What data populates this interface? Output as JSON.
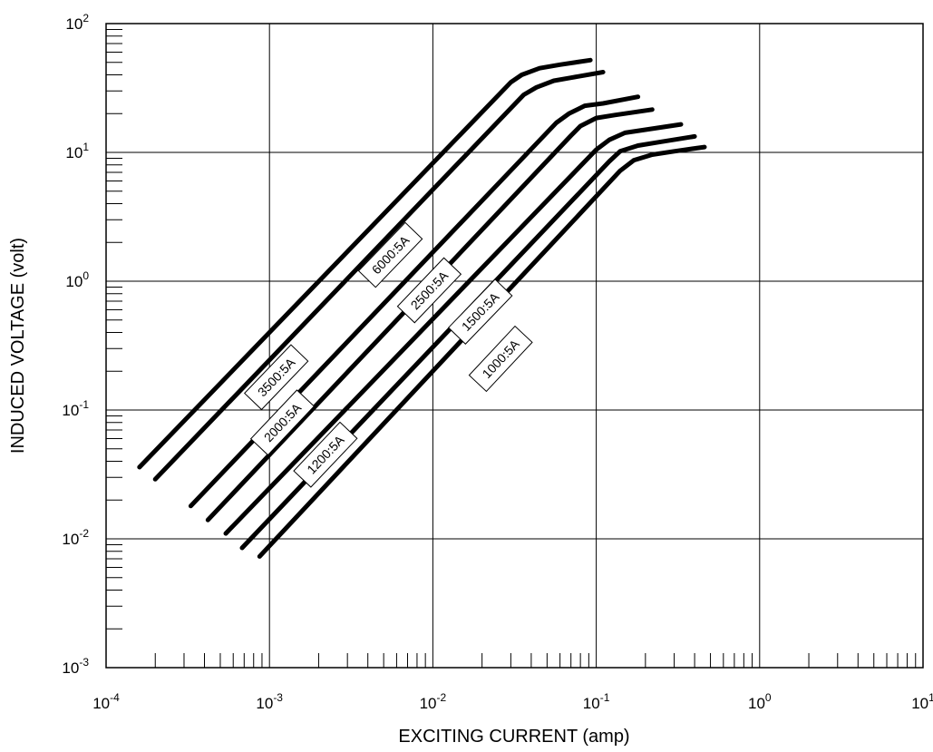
{
  "chart_data": {
    "type": "line",
    "title": "",
    "xlabel": "EXCITING CURRENT (amp)",
    "ylabel": "INDUCED VOLTAGE (volt)",
    "xscale": "log",
    "yscale": "log",
    "xlim": [
      0.0001,
      10
    ],
    "ylim": [
      0.001,
      100
    ],
    "grid": true,
    "legend": "none",
    "line_color": "#000000",
    "x_ticks": [
      {
        "base": "10",
        "exp": "-4",
        "value": 0.0001
      },
      {
        "base": "10",
        "exp": "-3",
        "value": 0.001
      },
      {
        "base": "10",
        "exp": "-2",
        "value": 0.01
      },
      {
        "base": "10",
        "exp": "-1",
        "value": 0.1
      },
      {
        "base": "10",
        "exp": "0",
        "value": 1
      },
      {
        "base": "10",
        "exp": "1",
        "value": 10
      }
    ],
    "y_ticks": [
      {
        "base": "10",
        "exp": "-3",
        "value": 0.001
      },
      {
        "base": "10",
        "exp": "-2",
        "value": 0.01
      },
      {
        "base": "10",
        "exp": "-1",
        "value": 0.1
      },
      {
        "base": "10",
        "exp": "0",
        "value": 1
      },
      {
        "base": "10",
        "exp": "1",
        "value": 10
      },
      {
        "base": "10",
        "exp": "2",
        "value": 100
      }
    ],
    "series": [
      {
        "name": "6000:5A",
        "label_at": [
          0.0055,
          1.6
        ],
        "x": [
          0.00016,
          0.03,
          0.035,
          0.045,
          0.06,
          0.092
        ],
        "y": [
          0.036,
          35,
          40,
          45,
          48,
          52
        ]
      },
      {
        "name": "3500:5A",
        "label_at": [
          0.0011,
          0.18
        ],
        "x": [
          0.0002,
          0.036,
          0.043,
          0.055,
          0.07,
          0.11
        ],
        "y": [
          0.029,
          28,
          32,
          36,
          38,
          42
        ]
      },
      {
        "name": "2500:5A",
        "label_at": [
          0.0095,
          0.85
        ],
        "x": [
          0.00033,
          0.057,
          0.068,
          0.085,
          0.11,
          0.18
        ],
        "y": [
          0.018,
          17,
          20,
          23,
          24,
          27
        ]
      },
      {
        "name": "2000:5A",
        "label_at": [
          0.0012,
          0.08
        ],
        "x": [
          0.00042,
          0.07,
          0.08,
          0.1,
          0.13,
          0.22
        ],
        "y": [
          0.014,
          13.5,
          16,
          18.5,
          19.5,
          21.5
        ]
      },
      {
        "name": "1500:5A",
        "label_at": [
          0.0195,
          0.58
        ],
        "x": [
          0.00054,
          0.1,
          0.12,
          0.15,
          0.2,
          0.33
        ],
        "y": [
          0.011,
          10.5,
          12.5,
          14.2,
          15,
          16.5
        ]
      },
      {
        "name": "1200:5A",
        "label_at": [
          0.0022,
          0.045
        ],
        "x": [
          0.00068,
          0.12,
          0.14,
          0.18,
          0.24,
          0.4
        ],
        "y": [
          0.0085,
          8.5,
          10.2,
          11.3,
          12,
          13.3
        ]
      },
      {
        "name": "1000:5A",
        "label_at": [
          0.026,
          0.25
        ],
        "x": [
          0.00087,
          0.14,
          0.17,
          0.22,
          0.3,
          0.46
        ],
        "y": [
          0.0073,
          7.2,
          8.7,
          9.6,
          10.2,
          11
        ]
      }
    ]
  }
}
